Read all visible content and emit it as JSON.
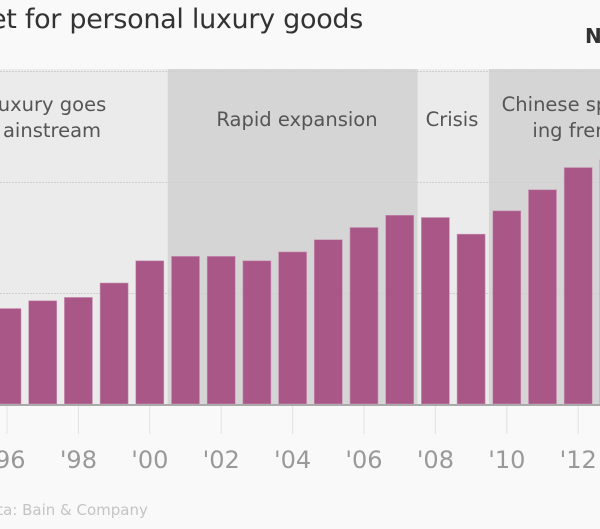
{
  "title": "et for personal luxury goods",
  "corner_label": "N",
  "source": "ata: Bain & Company",
  "colors": {
    "bar": "#a85787",
    "band_light": "#ebebeb",
    "band_dark": "#d5d5d5",
    "gridline": "#cfcfcf",
    "baseline": "#aaaaaa",
    "background": "#f9f9f9"
  },
  "chart_data": {
    "type": "bar",
    "title": "et for personal luxury goods",
    "xlabel": "",
    "ylabel": "",
    "y_units": "relative (gridline units; axis labels not visible)",
    "ylim": [
      0,
      3
    ],
    "grid": true,
    "categories": [
      "1996",
      "1997",
      "1998",
      "1999",
      "2000",
      "2001",
      "2002",
      "2003",
      "2004",
      "2005",
      "2006",
      "2007",
      "2008",
      "2009",
      "2010",
      "2011",
      "2012",
      "2013"
    ],
    "values": [
      0.86,
      0.93,
      0.96,
      1.09,
      1.29,
      1.33,
      1.33,
      1.29,
      1.37,
      1.48,
      1.59,
      1.7,
      1.68,
      1.53,
      1.74,
      1.93,
      2.13,
      2.2
    ],
    "tick_labels": [
      {
        "year": 1996,
        "label": "'96"
      },
      {
        "year": 1998,
        "label": "'98"
      },
      {
        "year": 2000,
        "label": "'00"
      },
      {
        "year": 2002,
        "label": "'02"
      },
      {
        "year": 2004,
        "label": "'04"
      },
      {
        "year": 2006,
        "label": "'06"
      },
      {
        "year": 2008,
        "label": "'08"
      },
      {
        "year": 2010,
        "label": "'10"
      },
      {
        "year": 2012,
        "label": "'12"
      }
    ],
    "periods": [
      {
        "label_lines": [
          "uxury goes",
          "ainstream"
        ],
        "start": 1994.5,
        "end": 2000.5,
        "shade": "light"
      },
      {
        "label_lines": [
          "Rapid expansion"
        ],
        "start": 2000.5,
        "end": 2007.5,
        "shade": "dark"
      },
      {
        "label_lines": [
          "Crisis"
        ],
        "start": 2007.5,
        "end": 2009.5,
        "shade": "light"
      },
      {
        "label_lines": [
          "Chinese sp",
          "ing fren"
        ],
        "start": 2009.5,
        "end": 2014,
        "shade": "dark"
      }
    ]
  }
}
